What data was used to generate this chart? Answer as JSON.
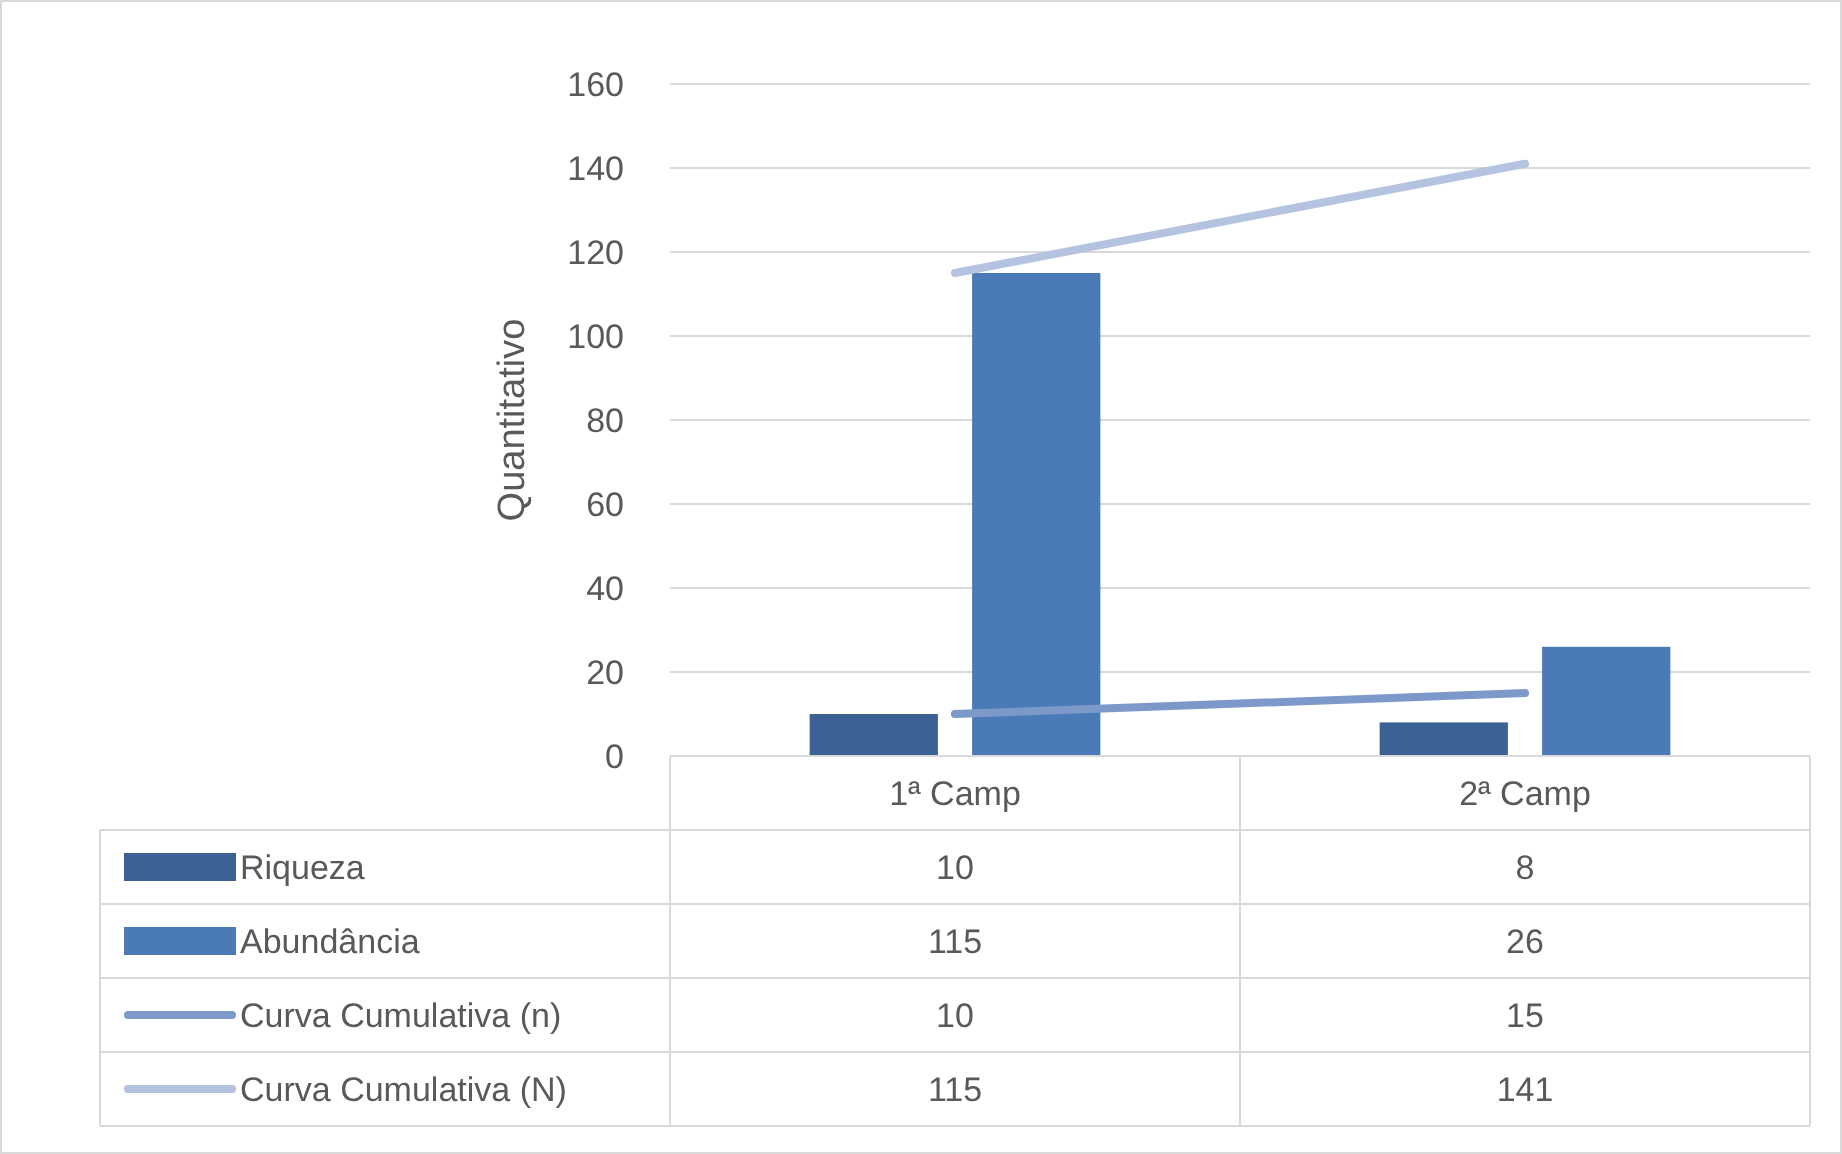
{
  "chart_data": {
    "type": "bar",
    "ylabel": "Quantitativo",
    "categories": [
      "1ª Camp",
      "2ª Camp"
    ],
    "series": [
      {
        "name": "Riqueza",
        "color": "#3b6295",
        "values": [
          10,
          8
        ]
      },
      {
        "name": "Abundância",
        "color": "#4a7bb7",
        "values": [
          115,
          26
        ]
      },
      {
        "name": "Curva Cumulativa (n)",
        "type": "line",
        "color": "#7c99c9",
        "values": [
          10,
          15
        ]
      },
      {
        "name": "Curva Cumulativa (N)",
        "type": "line",
        "color": "#b4c3df",
        "values": [
          115,
          141
        ]
      }
    ],
    "ylim": [
      0,
      160
    ],
    "yticks": [
      0,
      20,
      40,
      60,
      80,
      100,
      120,
      140,
      160
    ],
    "grid": "y",
    "legend": "bottom",
    "data_labels": true,
    "marker": "none",
    "line_style": "solid"
  }
}
